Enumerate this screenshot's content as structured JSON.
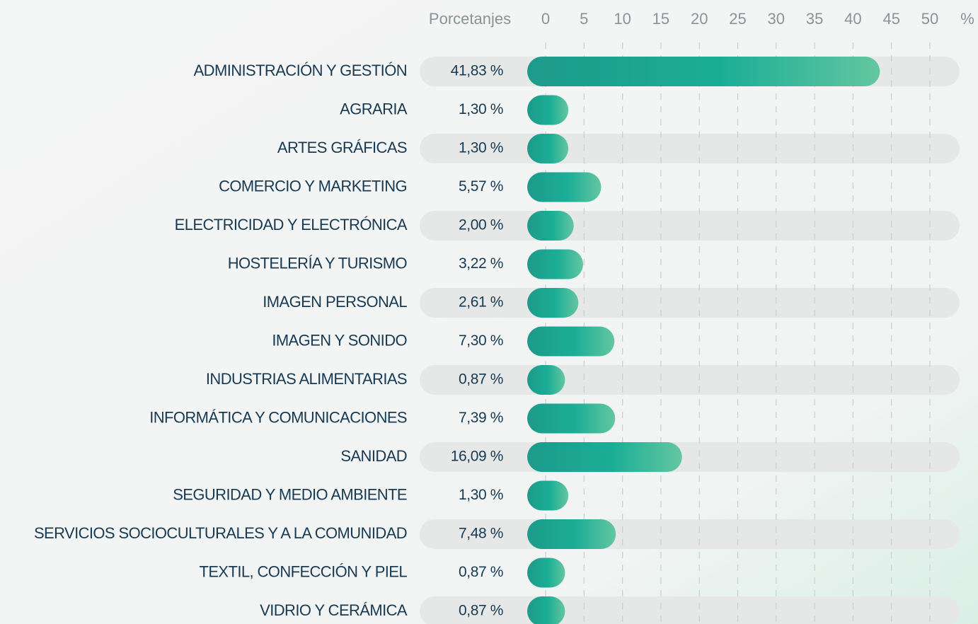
{
  "chart_data": {
    "type": "bar",
    "orientation": "horizontal",
    "value_header": "Porcetanjes",
    "x_label": "%",
    "categories": [
      "ADMINISTRACIÓN Y GESTIÓN",
      "AGRARIA",
      "ARTES GRÁFICAS",
      "COMERCIO Y MARKETING",
      "ELECTRICIDAD Y ELECTRÓNICA",
      "HOSTELERÍA Y TURISMO",
      "IMAGEN PERSONAL",
      "IMAGEN Y SONIDO",
      "INDUSTRIAS ALIMENTARIAS",
      "INFORMÁTICA Y COMUNICACIONES",
      "SANIDAD",
      "SEGURIDAD Y MEDIO AMBIENTE",
      "SERVICIOS SOCIOCULTURALES Y A LA COMUNIDAD",
      "TEXTIL, CONFECCIÓN Y PIEL",
      "VIDRIO Y CERÁMICA"
    ],
    "values": [
      41.83,
      1.3,
      1.3,
      5.57,
      2.0,
      3.22,
      2.61,
      7.3,
      0.87,
      7.39,
      16.09,
      1.3,
      7.48,
      0.87,
      0.87
    ],
    "value_labels": [
      "41,83 %",
      "1,30 %",
      "1,30 %",
      "5,57 %",
      "2,00 %",
      "3,22 %",
      "2,61 %",
      "7,30 %",
      "0,87 %",
      "7,39 %",
      "16,09 %",
      "1,30 %",
      "7,48 %",
      "0,87 %",
      "0,87 %"
    ],
    "color": "#1aa894",
    "xlim": [
      0,
      50
    ],
    "xticks": [
      0,
      5,
      10,
      15,
      20,
      25,
      30,
      35,
      40,
      45,
      50
    ],
    "grid": true
  }
}
